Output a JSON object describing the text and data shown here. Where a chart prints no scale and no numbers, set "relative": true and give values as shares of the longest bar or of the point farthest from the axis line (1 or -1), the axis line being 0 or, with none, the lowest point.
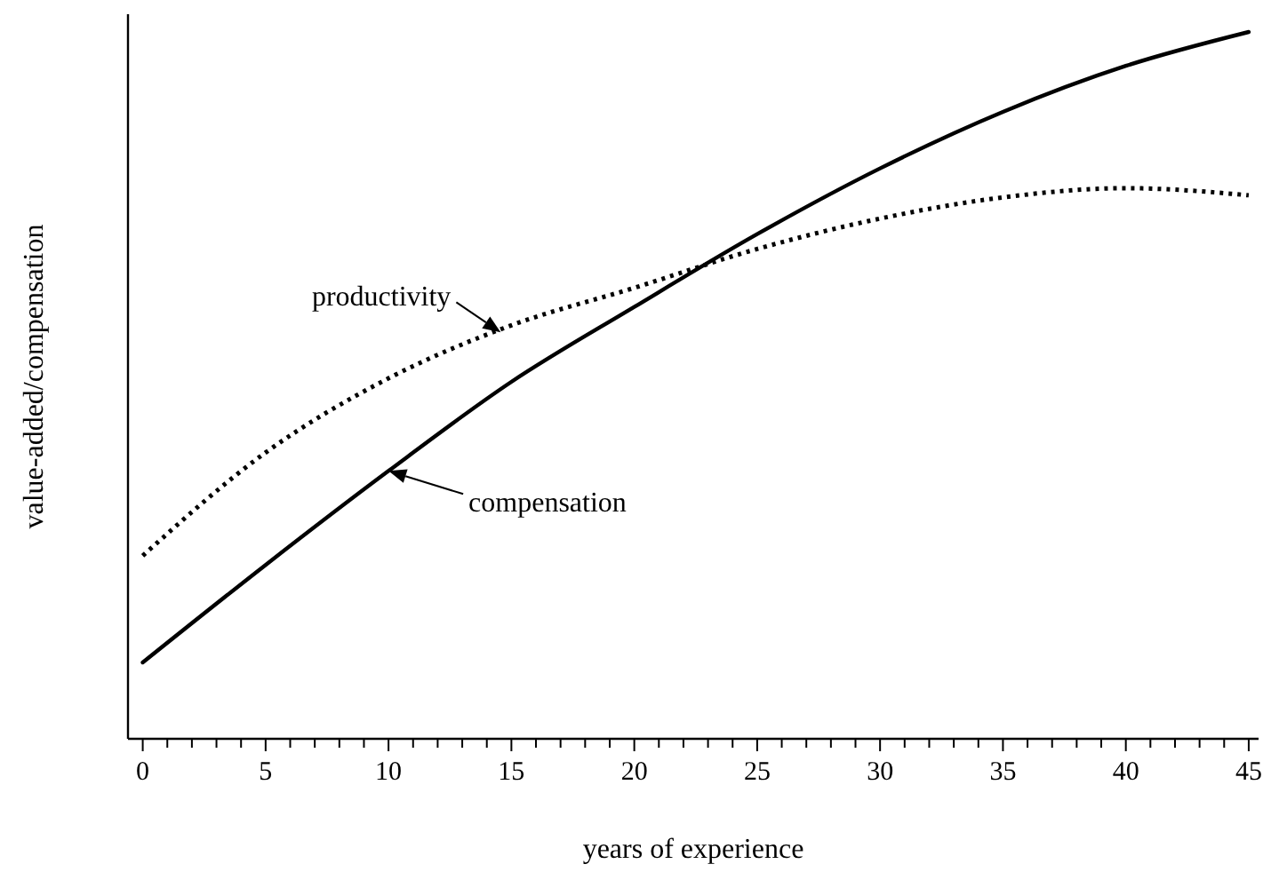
{
  "chart_data": {
    "type": "line",
    "relative": true,
    "xlabel": "years of experience",
    "ylabel": "value-added/compensation",
    "x": [
      0,
      5,
      10,
      15,
      20,
      25,
      30,
      35,
      40,
      45
    ],
    "xlim": [
      -0.6,
      45.4
    ],
    "xticks": [
      0,
      {
        "value": 1,
        "label": null
      },
      {
        "value": 2,
        "label": null
      },
      {
        "value": 3,
        "label": null
      },
      {
        "value": 4,
        "label": null
      },
      5,
      {
        "value": 6,
        "label": null
      },
      {
        "value": 7,
        "label": null
      },
      {
        "value": 8,
        "label": null
      },
      {
        "value": 9,
        "label": null
      },
      10,
      {
        "value": 11,
        "label": null
      },
      {
        "value": 12,
        "label": null
      },
      {
        "value": 13,
        "label": null
      },
      {
        "value": 14,
        "label": null
      },
      15,
      {
        "value": 16,
        "label": null
      },
      {
        "value": 17,
        "label": null
      },
      {
        "value": 18,
        "label": null
      },
      {
        "value": 19,
        "label": null
      },
      20,
      {
        "value": 21,
        "label": null
      },
      {
        "value": 22,
        "label": null
      },
      {
        "value": 23,
        "label": null
      },
      {
        "value": 24,
        "label": null
      },
      25,
      {
        "value": 26,
        "label": null
      },
      {
        "value": 27,
        "label": null
      },
      {
        "value": 28,
        "label": null
      },
      {
        "value": 29,
        "label": null
      },
      30,
      {
        "value": 31,
        "label": null
      },
      {
        "value": 32,
        "label": null
      },
      {
        "value": 33,
        "label": null
      },
      {
        "value": 34,
        "label": null
      },
      35,
      {
        "value": 36,
        "label": null
      },
      {
        "value": 37,
        "label": null
      },
      {
        "value": 38,
        "label": null
      },
      {
        "value": 39,
        "label": null
      },
      40,
      {
        "value": 41,
        "label": null
      },
      {
        "value": 42,
        "label": null
      },
      {
        "value": 43,
        "label": null
      },
      {
        "value": 44,
        "label": null
      },
      45
    ],
    "series": [
      {
        "name": "productivity",
        "color": "#000000",
        "line_style": "dotted",
        "values": [
          0.259,
          0.405,
          0.51,
          0.585,
          0.638,
          0.693,
          0.736,
          0.766,
          0.779,
          0.769
        ]
      },
      {
        "name": "compensation",
        "color": "#000000",
        "line_style": "solid",
        "values": [
          0.108,
          0.246,
          0.379,
          0.505,
          0.611,
          0.714,
          0.807,
          0.887,
          0.952,
          1.0
        ]
      }
    ]
  }
}
